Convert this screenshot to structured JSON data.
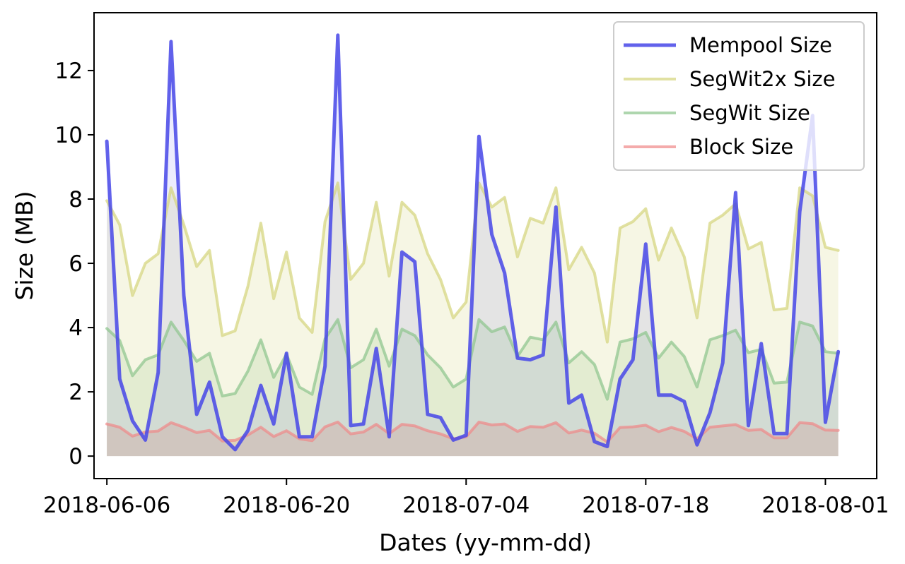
{
  "chart_data": {
    "type": "area",
    "title": "",
    "xlabel": "Dates (yy-mm-dd)",
    "ylabel": "Size (MB)",
    "x_start": "2018-06-06",
    "x_end": "2018-08-02",
    "xlim": [
      "2018-06-05",
      "2018-08-05"
    ],
    "ylim": [
      -0.7,
      13.8
    ],
    "x_ticks": [
      "2018-06-06",
      "2018-06-20",
      "2018-07-04",
      "2018-07-18",
      "2018-08-01"
    ],
    "y_ticks": [
      0,
      2,
      4,
      6,
      8,
      10,
      12
    ],
    "grid": false,
    "legend_position": "top-right",
    "series": [
      {
        "name": "Mempool Size",
        "color": "#4747e8",
        "values": [
          9.8,
          2.4,
          1.1,
          0.5,
          2.6,
          12.9,
          5.0,
          1.3,
          2.3,
          0.6,
          0.2,
          0.8,
          2.2,
          1.0,
          3.2,
          0.6,
          0.6,
          2.8,
          13.1,
          0.95,
          1.0,
          3.35,
          0.6,
          6.35,
          6.05,
          1.3,
          1.2,
          0.5,
          0.65,
          9.95,
          6.9,
          5.7,
          3.05,
          3.0,
          3.15,
          7.75,
          1.65,
          1.9,
          0.45,
          0.3,
          2.4,
          3.0,
          6.6,
          1.9,
          1.9,
          1.7,
          0.35,
          1.35,
          2.9,
          8.2,
          0.95,
          3.5,
          0.7,
          0.7,
          7.6,
          10.6,
          1.05,
          3.25
        ]
      },
      {
        "name": "SegWit2x Size",
        "color": "#d4d47a",
        "values": [
          7.95,
          7.2,
          5.0,
          6.0,
          6.3,
          8.35,
          7.2,
          5.9,
          6.4,
          3.75,
          3.9,
          5.3,
          7.25,
          4.9,
          6.35,
          4.3,
          3.85,
          7.3,
          8.5,
          5.5,
          6.0,
          7.9,
          5.6,
          7.9,
          7.5,
          6.3,
          5.5,
          4.3,
          4.8,
          8.5,
          7.75,
          8.05,
          6.2,
          7.4,
          7.25,
          8.35,
          5.8,
          6.5,
          5.7,
          3.55,
          7.1,
          7.3,
          7.7,
          6.1,
          7.1,
          6.2,
          4.3,
          7.25,
          7.5,
          7.85,
          6.45,
          6.65,
          4.55,
          4.6,
          8.35,
          8.1,
          6.5,
          6.4
        ]
      },
      {
        "name": "SegWit Size",
        "color": "#8cc48c",
        "values": [
          3.97,
          3.6,
          2.5,
          3.0,
          3.15,
          4.17,
          3.6,
          2.95,
          3.2,
          1.87,
          1.95,
          2.65,
          3.62,
          2.45,
          3.17,
          2.15,
          1.92,
          3.65,
          4.25,
          2.75,
          3.0,
          3.95,
          2.8,
          3.95,
          3.75,
          3.15,
          2.75,
          2.15,
          2.4,
          4.25,
          3.87,
          4.02,
          3.1,
          3.7,
          3.62,
          4.17,
          2.9,
          3.25,
          2.85,
          1.77,
          3.55,
          3.65,
          3.85,
          3.05,
          3.55,
          3.1,
          2.15,
          3.62,
          3.75,
          3.92,
          3.22,
          3.32,
          2.27,
          2.3,
          4.17,
          4.05,
          3.25,
          3.2
        ]
      },
      {
        "name": "Block Size",
        "color": "#f08888",
        "values": [
          1.0,
          0.9,
          0.62,
          0.75,
          0.78,
          1.04,
          0.9,
          0.73,
          0.8,
          0.47,
          0.49,
          0.66,
          0.9,
          0.61,
          0.79,
          0.54,
          0.48,
          0.91,
          1.06,
          0.69,
          0.75,
          0.99,
          0.7,
          0.99,
          0.94,
          0.79,
          0.69,
          0.54,
          0.6,
          1.06,
          0.97,
          1.0,
          0.77,
          0.92,
          0.9,
          1.04,
          0.72,
          0.81,
          0.71,
          0.44,
          0.89,
          0.91,
          0.96,
          0.76,
          0.89,
          0.77,
          0.54,
          0.9,
          0.94,
          0.98,
          0.8,
          0.83,
          0.57,
          0.57,
          1.04,
          1.01,
          0.81,
          0.8
        ]
      }
    ]
  }
}
